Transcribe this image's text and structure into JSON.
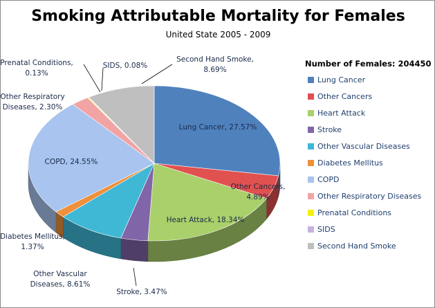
{
  "chart_data": {
    "type": "pie",
    "title": "Smoking Attributable Mortality for Females",
    "subtitle": "United State 2005  - 2009",
    "legend_title": "Number of Females: 204450",
    "legend_position": "right",
    "slices": [
      {
        "name": "Lung Cancer",
        "value": 27.57,
        "label": "Lung Cancer, 27.57%",
        "color": "#4f81bd"
      },
      {
        "name": "Other Cancers",
        "value": 4.89,
        "label": "Other Cancers, 4.89%",
        "color": "#e0514f"
      },
      {
        "name": "Heart Attack",
        "value": 18.34,
        "label": "Heart Attack, 18.34%",
        "color": "#a9d06a"
      },
      {
        "name": "Stroke",
        "value": 3.47,
        "label": "Stroke, 3.47%",
        "color": "#8066a8"
      },
      {
        "name": "Other Vascular Diseases",
        "value": 8.61,
        "label": "Other Vascular Diseases, 8.61%",
        "color": "#3fb8d6"
      },
      {
        "name": "Diabetes Mellitus",
        "value": 1.37,
        "label": "Diabetes Mellitus, 1.37%",
        "color": "#f0903a"
      },
      {
        "name": "COPD",
        "value": 24.55,
        "label": "COPD, 24.55%",
        "color": "#a8c4ef"
      },
      {
        "name": "Other Respiratory Diseases",
        "value": 2.3,
        "label": "Other Respiratory Diseases, 2.30%",
        "color": "#f2a4a4"
      },
      {
        "name": "Prenatal Conditions",
        "value": 0.13,
        "label": "Prenatal Conditions, 0.13%",
        "color": "#f2f20a"
      },
      {
        "name": "SIDS",
        "value": 0.08,
        "label": "SIDS, 0.08%",
        "color": "#c4b2e0"
      },
      {
        "name": "Second Hand Smoke",
        "value": 8.69,
        "label": "Second Hand Smoke, 8.69%",
        "color": "#bfbfbf"
      }
    ]
  }
}
